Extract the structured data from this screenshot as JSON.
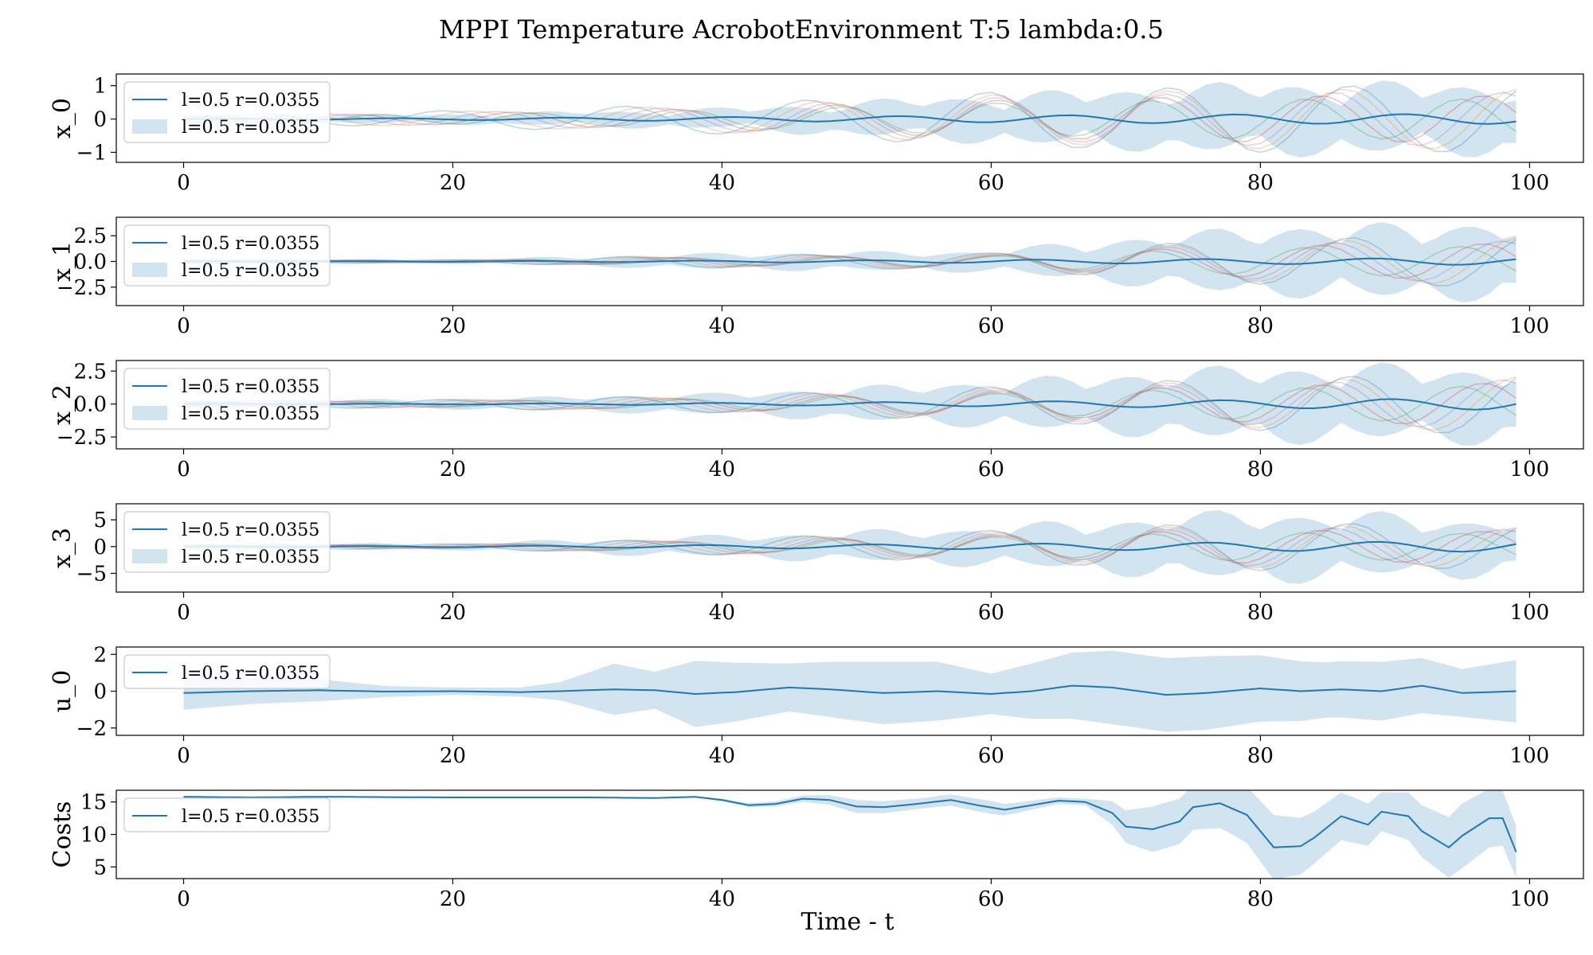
{
  "figure_title": "MPPI Temperature AcrobotEnvironment T:5 lambda:0.5",
  "xlabel": "Time - t",
  "colors": {
    "mean": "#1f77b4",
    "band": "#1f77b4",
    "samples": [
      "#2ca02c",
      "#d62728",
      "#9467bd",
      "#ff7f0e",
      "#1f77b4"
    ]
  },
  "chart_data": [
    {
      "type": "line",
      "ylabel": "x_0",
      "xlim": [
        -5,
        104
      ],
      "ylim": [
        -1.3,
        1.35
      ],
      "xticks": [
        0,
        20,
        40,
        60,
        80,
        100
      ],
      "yticks": [
        -1,
        0,
        1
      ],
      "legend": {
        "position": "top-left",
        "entries": [
          "l=0.5 r=0.0355",
          "l=0.5 r=0.0355"
        ]
      },
      "x_start": 0,
      "x_end": 99,
      "mean": {
        "amp": [
          0.0,
          0.03,
          0.06,
          0.1,
          0.14,
          0.15
        ],
        "period": 12.5,
        "phase": 0.0
      },
      "band": [
        0.12,
        0.15,
        0.3,
        0.7,
        1.05,
        1.05
      ],
      "samples": {
        "amps": [
          0.12,
          0.25,
          0.45,
          0.8,
          1.0,
          1.0
        ],
        "period": 12.5
      }
    },
    {
      "type": "line",
      "ylabel": "x_1",
      "xlim": [
        -5,
        104
      ],
      "ylim": [
        -4.3,
        4.3
      ],
      "xticks": [
        0,
        20,
        40,
        60,
        80,
        100
      ],
      "yticks": [
        -2.5,
        0.0,
        2.5
      ],
      "legend": {
        "position": "top-left",
        "entries": [
          "l=0.5 r=0.0355",
          "l=0.5 r=0.0355"
        ]
      },
      "x_start": 0,
      "x_end": 99,
      "mean": {
        "amp": [
          0.0,
          0.03,
          0.08,
          0.15,
          0.25,
          0.35
        ],
        "period": 12.5,
        "phase": 1.2
      },
      "band": [
        0.3,
        0.2,
        0.8,
        1.0,
        3.3,
        3.8
      ],
      "samples": {
        "amps": [
          0.2,
          0.15,
          0.6,
          0.8,
          2.2,
          2.5
        ],
        "period": 12.5
      }
    },
    {
      "type": "line",
      "ylabel": "x_2",
      "xlim": [
        -5,
        104
      ],
      "ylim": [
        -3.4,
        3.3
      ],
      "xticks": [
        0,
        20,
        40,
        60,
        80,
        100
      ],
      "yticks": [
        -2.5,
        0.0,
        2.5
      ],
      "legend": {
        "position": "top-left",
        "entries": [
          "l=0.5 r=0.0355",
          "l=0.5 r=0.0355"
        ]
      },
      "x_start": 0,
      "x_end": 99,
      "mean": {
        "amp": [
          0.0,
          0.03,
          0.08,
          0.18,
          0.3,
          0.45
        ],
        "period": 12.5,
        "phase": 0.5
      },
      "band": [
        0.3,
        0.4,
        0.8,
        1.7,
        2.8,
        2.8
      ],
      "samples": {
        "amps": [
          0.25,
          0.35,
          0.65,
          1.3,
          2.0,
          2.3
        ],
        "period": 12.5
      }
    },
    {
      "type": "line",
      "ylabel": "x_3",
      "xlim": [
        -5,
        104
      ],
      "ylim": [
        -8.5,
        8.0
      ],
      "xticks": [
        0,
        20,
        40,
        60,
        80,
        100
      ],
      "yticks": [
        -5,
        0,
        5
      ],
      "legend": {
        "position": "top-left",
        "entries": [
          "l=0.5 r=0.0355",
          "l=0.5 r=0.0355"
        ]
      },
      "x_start": 0,
      "x_end": 99,
      "mean": {
        "amp": [
          0.0,
          0.1,
          0.3,
          0.5,
          0.8,
          1.0
        ],
        "period": 12.5,
        "phase": 1.0
      },
      "band": [
        0.6,
        0.6,
        2.0,
        3.5,
        6.5,
        5.0
      ],
      "samples": {
        "amps": [
          0.5,
          0.5,
          1.5,
          3.0,
          4.5,
          4.0
        ],
        "period": 12.5
      }
    },
    {
      "type": "line",
      "ylabel": "u_0",
      "xlim": [
        -5,
        104
      ],
      "ylim": [
        -2.4,
        2.4
      ],
      "xticks": [
        0,
        20,
        40,
        60,
        80,
        100
      ],
      "yticks": [
        -2,
        0,
        2
      ],
      "legend": {
        "position": "top-left",
        "entries": [
          "l=0.5 r=0.0355"
        ]
      },
      "x_start": 0,
      "x_end": 99,
      "mean_points": [
        [
          0,
          -0.1
        ],
        [
          5,
          0.0
        ],
        [
          10,
          0.05
        ],
        [
          15,
          -0.02
        ],
        [
          20,
          0.0
        ],
        [
          25,
          -0.05
        ],
        [
          28,
          0.0
        ],
        [
          32,
          0.1
        ],
        [
          35,
          0.05
        ],
        [
          38,
          -0.15
        ],
        [
          41,
          -0.05
        ],
        [
          45,
          0.2
        ],
        [
          48,
          0.1
        ],
        [
          52,
          -0.1
        ],
        [
          56,
          0.0
        ],
        [
          60,
          -0.15
        ],
        [
          63,
          0.0
        ],
        [
          66,
          0.3
        ],
        [
          69,
          0.2
        ],
        [
          73,
          -0.2
        ],
        [
          76,
          -0.1
        ],
        [
          80,
          0.15
        ],
        [
          83,
          0.0
        ],
        [
          86,
          0.1
        ],
        [
          89,
          0.0
        ],
        [
          92,
          0.3
        ],
        [
          95,
          -0.1
        ],
        [
          99,
          0.0
        ]
      ],
      "band_points": [
        [
          0,
          0.9
        ],
        [
          5,
          0.7
        ],
        [
          10,
          0.6
        ],
        [
          15,
          0.3
        ],
        [
          20,
          0.2
        ],
        [
          25,
          0.25
        ],
        [
          28,
          0.5
        ],
        [
          32,
          1.4
        ],
        [
          35,
          1.0
        ],
        [
          38,
          1.8
        ],
        [
          41,
          1.6
        ],
        [
          45,
          1.3
        ],
        [
          48,
          1.5
        ],
        [
          52,
          1.7
        ],
        [
          56,
          1.6
        ],
        [
          60,
          1.1
        ],
        [
          63,
          1.5
        ],
        [
          66,
          1.8
        ],
        [
          69,
          2.0
        ],
        [
          72,
          2.0
        ],
        [
          76,
          2.0
        ],
        [
          80,
          1.8
        ],
        [
          85,
          1.5
        ],
        [
          89,
          1.6
        ],
        [
          92,
          1.5
        ],
        [
          95,
          1.3
        ],
        [
          99,
          1.7
        ]
      ]
    },
    {
      "type": "line",
      "ylabel": "Costs",
      "xlim": [
        -5,
        104
      ],
      "ylim": [
        3.2,
        16.8
      ],
      "xticks": [
        0,
        20,
        40,
        60,
        80,
        100
      ],
      "yticks": [
        5,
        10,
        15
      ],
      "legend": {
        "position": "top-left",
        "entries": [
          "l=0.5 r=0.0355"
        ]
      },
      "x_start": 0,
      "x_end": 99,
      "mean_points": [
        [
          0,
          15.8
        ],
        [
          5,
          15.7
        ],
        [
          10,
          15.8
        ],
        [
          20,
          15.7
        ],
        [
          30,
          15.7
        ],
        [
          35,
          15.6
        ],
        [
          38,
          15.8
        ],
        [
          40,
          15.3
        ],
        [
          42,
          14.5
        ],
        [
          44,
          14.7
        ],
        [
          46,
          15.5
        ],
        [
          48,
          15.3
        ],
        [
          50,
          14.3
        ],
        [
          52,
          14.2
        ],
        [
          54,
          14.6
        ],
        [
          57,
          15.3
        ],
        [
          59,
          14.5
        ],
        [
          61,
          13.8
        ],
        [
          63,
          14.5
        ],
        [
          65,
          15.2
        ],
        [
          67,
          15.0
        ],
        [
          69,
          13.3
        ],
        [
          70,
          11.2
        ],
        [
          72,
          10.8
        ],
        [
          74,
          12.0
        ],
        [
          75,
          14.2
        ],
        [
          77,
          14.8
        ],
        [
          79,
          13.0
        ],
        [
          80,
          10.5
        ],
        [
          81,
          8.0
        ],
        [
          83,
          8.2
        ],
        [
          84,
          9.5
        ],
        [
          86,
          12.8
        ],
        [
          88,
          11.5
        ],
        [
          89,
          13.5
        ],
        [
          91,
          12.8
        ],
        [
          92,
          10.5
        ],
        [
          94,
          8.0
        ],
        [
          95,
          9.8
        ],
        [
          97,
          12.5
        ],
        [
          98,
          12.5
        ],
        [
          99,
          7.3
        ]
      ],
      "band_points": [
        [
          0,
          0.1
        ],
        [
          10,
          0.1
        ],
        [
          20,
          0.1
        ],
        [
          30,
          0.1
        ],
        [
          38,
          0.1
        ],
        [
          42,
          0.3
        ],
        [
          46,
          0.5
        ],
        [
          50,
          1.0
        ],
        [
          55,
          0.8
        ],
        [
          60,
          1.0
        ],
        [
          65,
          0.5
        ],
        [
          67,
          0.5
        ],
        [
          70,
          2.5
        ],
        [
          72,
          3.5
        ],
        [
          75,
          3.5
        ],
        [
          78,
          4.0
        ],
        [
          81,
          5.0
        ],
        [
          84,
          4.0
        ],
        [
          87,
          3.5
        ],
        [
          89,
          3.0
        ],
        [
          92,
          4.0
        ],
        [
          95,
          5.0
        ],
        [
          99,
          4.0
        ]
      ]
    }
  ]
}
